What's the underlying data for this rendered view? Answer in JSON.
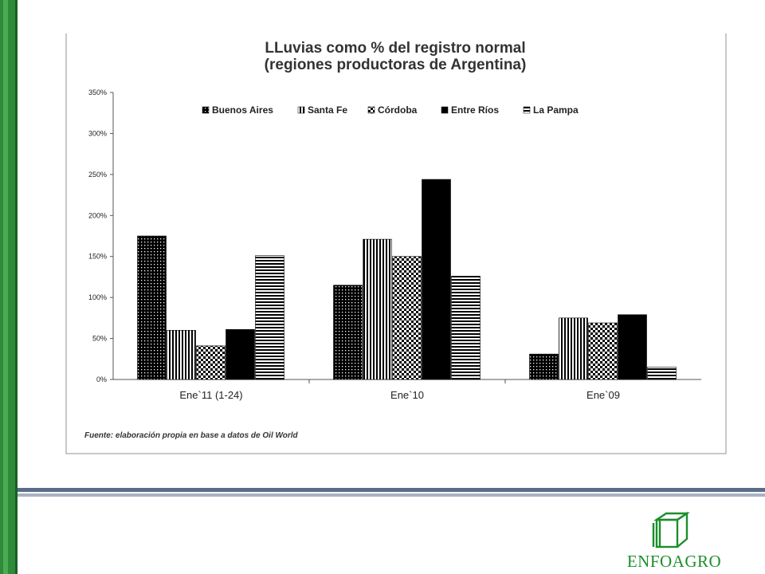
{
  "chart_data": {
    "type": "bar",
    "title": [
      "LLuvias como % del registro normal",
      "(regiones productoras de Argentina)"
    ],
    "categories": [
      "Ene`11 (1-24)",
      "Ene`10",
      "Ene`09"
    ],
    "series": [
      {
        "name": "Buenos Aires",
        "values": [
          175,
          115,
          31
        ],
        "pattern": "dots"
      },
      {
        "name": "Santa Fe",
        "values": [
          60,
          171,
          75
        ],
        "pattern": "vlines"
      },
      {
        "name": "Córdoba",
        "values": [
          41,
          150,
          69
        ],
        "pattern": "checker"
      },
      {
        "name": "Entre Ríos",
        "values": [
          61,
          244,
          79
        ],
        "pattern": "solid"
      },
      {
        "name": "La Pampa",
        "values": [
          151,
          126,
          15
        ],
        "pattern": "hlines"
      }
    ],
    "yticks": [
      "0%",
      "50%",
      "100%",
      "150%",
      "200%",
      "250%",
      "300%",
      "350%"
    ],
    "ylim": [
      0,
      350
    ],
    "legend_position": "top",
    "source": "Fuente: elaboración propia en base a datos de Oil World"
  },
  "logo": {
    "text": "ENFOAGRO",
    "icon": "cube-icon",
    "color": "#1a8f2a"
  }
}
